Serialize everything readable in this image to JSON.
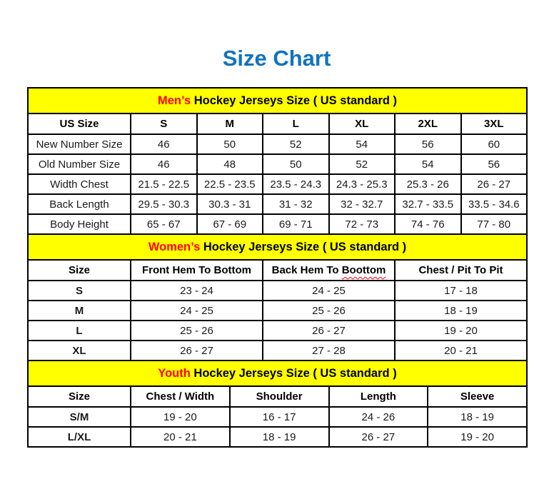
{
  "page": {
    "title": "Size Chart"
  },
  "colors": {
    "title_blue": "#1173c1",
    "accent_red": "#ff0000",
    "band_yellow": "#ffff00",
    "border_black": "#000000"
  },
  "sections": [
    {
      "id": "mens",
      "heading": {
        "accent": "Men’s",
        "rest": " Hockey Jerseys Size ( US standard )"
      },
      "bold_row_labels": false,
      "columns": [
        {
          "text": "US Size"
        },
        {
          "text": "S"
        },
        {
          "text": "M"
        },
        {
          "text": "L"
        },
        {
          "text": "XL"
        },
        {
          "text": "2XL"
        },
        {
          "text": "3XL"
        }
      ],
      "rows": [
        [
          "New Number Size",
          "46",
          "50",
          "52",
          "54",
          "56",
          "60"
        ],
        [
          "Old Number Size",
          "46",
          "48",
          "50",
          "52",
          "54",
          "56"
        ],
        [
          "Width Chest",
          "21.5 - 22.5",
          "22.5 - 23.5",
          "23.5 - 24.3",
          "24.3 - 25.3",
          "25.3 - 26",
          "26 - 27"
        ],
        [
          "Back Length",
          "29.5 - 30.3",
          "30.3 - 31",
          "31 - 32",
          "32 - 32.7",
          "32.7 - 33.5",
          "33.5 - 34.6"
        ],
        [
          "Body Height",
          "65 - 67",
          "67 - 69",
          "69 - 71",
          "72 - 73",
          "74 - 76",
          "77 - 80"
        ]
      ]
    },
    {
      "id": "womens",
      "heading": {
        "accent": "Women’s",
        "rest": " Hockey Jerseys Size ( US standard )"
      },
      "bold_row_labels": true,
      "columns": [
        {
          "text": "Size"
        },
        {
          "text": "Front Hem To Bottom"
        },
        {
          "text": "Back Hem To ",
          "squiggle": "Boottom"
        },
        {
          "text": "Chest / Pit To Pit"
        }
      ],
      "rows": [
        [
          "S",
          "23 - 24",
          "24 - 25",
          "17 - 18"
        ],
        [
          "M",
          "24 - 25",
          "25 - 26",
          "18 - 19"
        ],
        [
          "L",
          "25 - 26",
          "26 - 27",
          "19 - 20"
        ],
        [
          "XL",
          "26 - 27",
          "27 - 28",
          "20 - 21"
        ]
      ]
    },
    {
      "id": "youth",
      "heading": {
        "accent": "Youth",
        "rest": " Hockey Jerseys Size ( US standard )"
      },
      "bold_row_labels": true,
      "columns": [
        {
          "text": "Size"
        },
        {
          "text": "Chest / Width"
        },
        {
          "text": "Shoulder"
        },
        {
          "text": "Length"
        },
        {
          "text": "Sleeve"
        }
      ],
      "rows": [
        [
          "S/M",
          "19 - 20",
          "16 - 17",
          "24 - 26",
          "18 - 19"
        ],
        [
          "L/XL",
          "20 - 21",
          "18 - 19",
          "26 - 27",
          "19 - 20"
        ]
      ]
    }
  ]
}
